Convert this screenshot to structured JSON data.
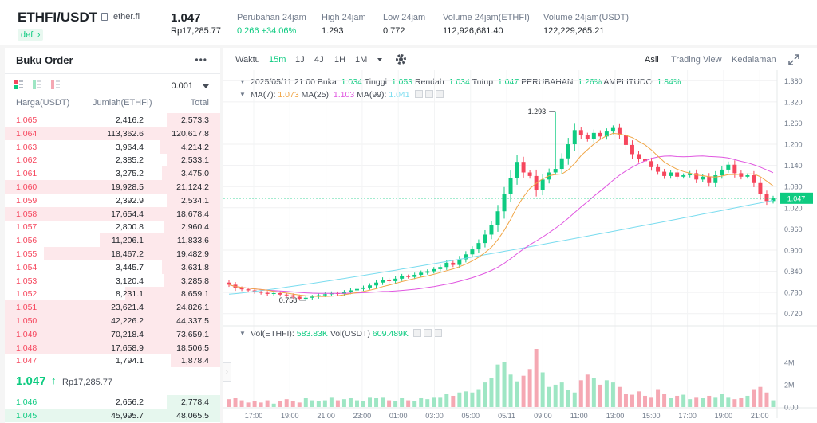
{
  "header": {
    "pair": "ETHFI/USDT",
    "site": "ether.fi",
    "tag": "defi",
    "tag_arrow": "›",
    "price": "1.047",
    "price_idr": "Rp17,285.77",
    "stats": [
      {
        "label": "Perubahan 24jam",
        "value": "0.266 +34.06%",
        "color": "green"
      },
      {
        "label": "High 24jam",
        "value": "1.293",
        "color": "normal"
      },
      {
        "label": "Low 24jam",
        "value": "0.772",
        "color": "normal"
      },
      {
        "label": "Volume 24jam(ETHFI)",
        "value": "112,926,681.40",
        "color": "normal"
      },
      {
        "label": "Volume 24jam(USDT)",
        "value": "122,229,265.21",
        "color": "normal"
      }
    ]
  },
  "orderbook": {
    "title": "Buku Order",
    "more": "•••",
    "tick": "0.001",
    "columns": [
      "Harga(USDT)",
      "Jumlah(ETHFI)",
      "Total"
    ],
    "asks": [
      {
        "price": "1.065",
        "amount": "2,416.2",
        "total": "2,573.3",
        "depth": 0.25
      },
      {
        "price": "1.064",
        "amount": "113,362.6",
        "total": "120,617.8",
        "depth": 1.0
      },
      {
        "price": "1.063",
        "amount": "3,964.4",
        "total": "4,214.2",
        "depth": 0.28
      },
      {
        "price": "1.062",
        "amount": "2,385.2",
        "total": "2,533.1",
        "depth": 0.25
      },
      {
        "price": "1.061",
        "amount": "3,275.2",
        "total": "3,475.0",
        "depth": 0.27
      },
      {
        "price": "1.060",
        "amount": "19,928.5",
        "total": "21,124.2",
        "depth": 1.0
      },
      {
        "price": "1.059",
        "amount": "2,392.9",
        "total": "2,534.1",
        "depth": 0.25
      },
      {
        "price": "1.058",
        "amount": "17,654.4",
        "total": "18,678.4",
        "depth": 1.0
      },
      {
        "price": "1.057",
        "amount": "2,800.8",
        "total": "2,960.4",
        "depth": 0.26
      },
      {
        "price": "1.056",
        "amount": "11,206.1",
        "total": "11,833.6",
        "depth": 0.56
      },
      {
        "price": "1.055",
        "amount": "18,467.2",
        "total": "19,482.9",
        "depth": 0.82
      },
      {
        "price": "1.054",
        "amount": "3,445.7",
        "total": "3,631.8",
        "depth": 0.27
      },
      {
        "price": "1.053",
        "amount": "3,120.4",
        "total": "3,285.8",
        "depth": 0.26
      },
      {
        "price": "1.052",
        "amount": "8,231.1",
        "total": "8,659.1",
        "depth": 0.44
      },
      {
        "price": "1.051",
        "amount": "23,621.4",
        "total": "24,826.1",
        "depth": 1.0
      },
      {
        "price": "1.050",
        "amount": "42,226.2",
        "total": "44,337.5",
        "depth": 1.0
      },
      {
        "price": "1.049",
        "amount": "70,218.4",
        "total": "73,659.1",
        "depth": 1.0
      },
      {
        "price": "1.048",
        "amount": "17,658.9",
        "total": "18,506.5",
        "depth": 1.0
      },
      {
        "price": "1.047",
        "amount": "1,794.1",
        "total": "1,878.4",
        "depth": 0.23
      }
    ],
    "mid_price": "1.047",
    "mid_arrow": "↑",
    "mid_idr": "Rp17,285.77",
    "bids": [
      {
        "price": "1.046",
        "amount": "2,656.2",
        "total": "2,778.4",
        "depth": 0.25
      },
      {
        "price": "1.045",
        "amount": "45,995.7",
        "total": "48,065.5",
        "depth": 1.0
      }
    ]
  },
  "toolbar": {
    "time_label": "Waktu",
    "intervals": [
      "15m",
      "1J",
      "4J",
      "1H",
      "1M"
    ],
    "active_interval": "15m",
    "views": [
      "Asli",
      "Trading View",
      "Kedalaman"
    ],
    "active_view": "Asli"
  },
  "info_line": {
    "date": "2025/05/11 21:00",
    "open_label": "Buka:",
    "open": "1.034",
    "high_label": "Tinggi:",
    "high": "1.053",
    "low_label": "Rendah:",
    "low": "1.034",
    "close_label": "Tutup:",
    "close": "1.047",
    "change_label": "PERUBAHAN:",
    "change": "1.26%",
    "amp_label": "AMPLITUDO:",
    "amp": "1.84%"
  },
  "ma_line": {
    "ma7_label": "MA(7):",
    "ma7": "1.073",
    "ma25_label": "MA(25):",
    "ma25": "1.103",
    "ma99_label": "MA(99):",
    "ma99": "1.041"
  },
  "vol_line": {
    "v1_label": "Vol(ETHFI):",
    "v1": "583.83K",
    "v2_label": "Vol(USDT)",
    "v2": "609.489K"
  },
  "colors": {
    "up": "#0ecb81",
    "down": "#f6465d",
    "up_vol": "#9ee6c4",
    "down_vol": "#f5a8b3",
    "ma7": "#f0a545",
    "ma25": "#e056e0",
    "ma99": "#7adcef"
  },
  "chart_data": {
    "type": "candlestick",
    "price_axis": [
      1.38,
      1.32,
      1.26,
      1.2,
      1.14,
      1.08,
      1.02,
      0.96,
      0.9,
      0.84,
      0.78,
      0.72
    ],
    "price_labels": [
      "1.380",
      "1.320",
      "1.260",
      "1.200",
      "1.140",
      "1.080",
      "1.020",
      "0.960",
      "0.900",
      "0.840",
      "0.780",
      "0.720"
    ],
    "ylim": [
      0.69,
      1.41
    ],
    "current_price": 1.047,
    "current_price_label": "1.047",
    "high_marker": {
      "value": 1.293,
      "label": "1.293",
      "index": 51
    },
    "low_marker": {
      "value": 0.758,
      "label": "0.758",
      "index": 11
    },
    "volume_axis": [
      4,
      2,
      0
    ],
    "volume_labels": [
      "4M",
      "2M",
      "0.00"
    ],
    "vol_max": 5.2,
    "x_labels": [
      "17:00",
      "19:00",
      "21:00",
      "23:00",
      "01:00",
      "03:00",
      "05:00",
      "05/11",
      "09:00",
      "11:00",
      "13:00",
      "15:00",
      "17:00",
      "19:00",
      "21:00"
    ],
    "closes": [
      0.802,
      0.792,
      0.789,
      0.786,
      0.782,
      0.779,
      0.776,
      0.778,
      0.774,
      0.772,
      0.768,
      0.762,
      0.765,
      0.768,
      0.772,
      0.775,
      0.778,
      0.776,
      0.781,
      0.786,
      0.79,
      0.794,
      0.8,
      0.808,
      0.816,
      0.812,
      0.819,
      0.826,
      0.824,
      0.83,
      0.836,
      0.84,
      0.846,
      0.852,
      0.864,
      0.858,
      0.874,
      0.888,
      0.902,
      0.92,
      0.944,
      0.97,
      1.01,
      1.058,
      1.105,
      1.15,
      1.12,
      1.11,
      1.07,
      1.1,
      1.12,
      1.13,
      1.16,
      1.2,
      1.24,
      1.225,
      1.215,
      1.232,
      1.222,
      1.236,
      1.246,
      1.226,
      1.198,
      1.172,
      1.158,
      1.152,
      1.135,
      1.122,
      1.11,
      1.12,
      1.108,
      1.112,
      1.118,
      1.1,
      1.108,
      1.09,
      1.112,
      1.128,
      1.142,
      1.118,
      1.108,
      1.112,
      1.09,
      1.058,
      1.039,
      1.047
    ],
    "volumes": [
      0.7,
      0.8,
      0.6,
      0.4,
      0.5,
      0.4,
      0.6,
      0.3,
      0.5,
      0.7,
      0.5,
      0.4,
      0.8,
      0.6,
      0.5,
      0.6,
      0.9,
      0.6,
      0.7,
      0.8,
      0.6,
      0.5,
      0.9,
      0.8,
      0.9,
      0.6,
      0.5,
      0.8,
      0.6,
      0.5,
      0.8,
      0.7,
      0.9,
      0.9,
      1.2,
      1.0,
      1.3,
      1.4,
      1.3,
      1.6,
      2.2,
      2.6,
      3.8,
      4.0,
      2.9,
      2.3,
      2.8,
      3.4,
      5.2,
      3.1,
      1.8,
      2.0,
      2.2,
      1.5,
      1.3,
      2.4,
      2.9,
      2.6,
      2.0,
      2.4,
      2.2,
      1.8,
      1.2,
      1.1,
      1.4,
      1.0,
      0.9,
      1.6,
      1.2,
      0.8,
      1.0,
      1.1,
      0.7,
      0.9,
      0.8,
      1.0,
      0.9,
      1.2,
      0.9,
      0.7,
      0.8,
      1.0,
      1.6,
      1.8,
      1.3,
      0.6
    ]
  }
}
